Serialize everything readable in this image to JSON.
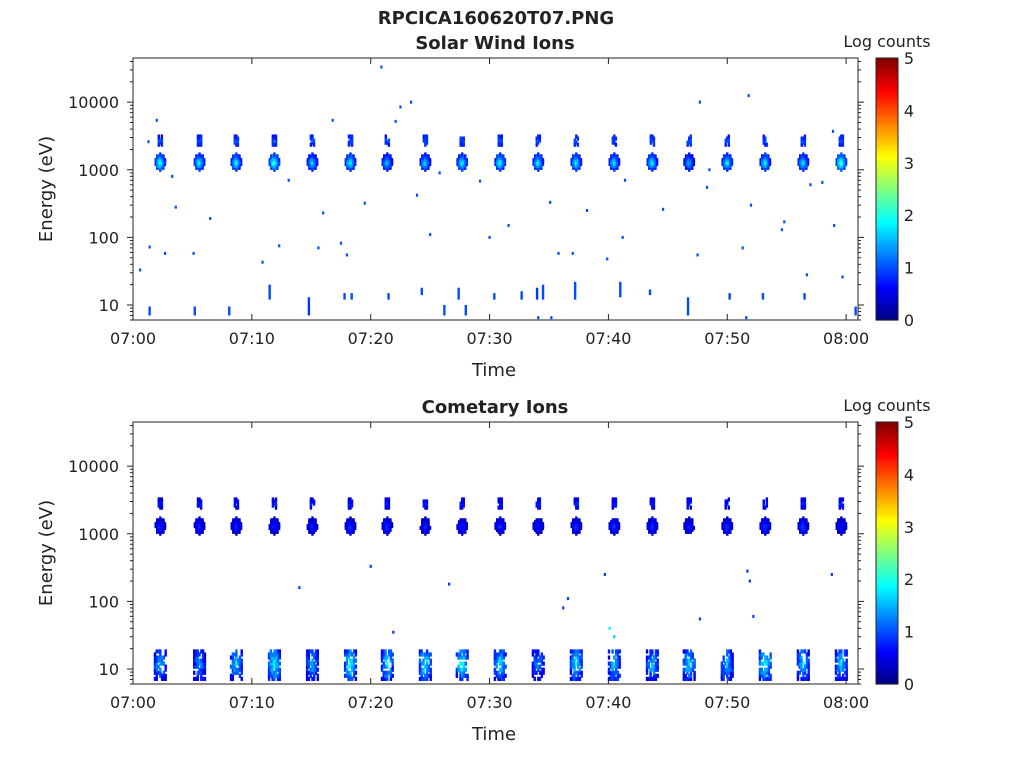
{
  "figure": {
    "title": "RPCICA160620T07.PNG"
  },
  "chart_data": [
    {
      "type": "heatmap",
      "title": "Solar Wind Ions",
      "xlabel": "Time",
      "ylabel": "Energy (eV)",
      "x_ticks": [
        "07:00",
        "07:10",
        "07:20",
        "07:30",
        "07:40",
        "07:50",
        "08:00"
      ],
      "x_range_minutes": [
        0,
        61
      ],
      "y_scale": "log",
      "y_ticks": [
        "10",
        "100",
        "1000",
        "10000"
      ],
      "ylim": [
        6,
        45000
      ],
      "colorbar": {
        "label": "Log counts",
        "range": [
          0,
          5
        ],
        "ticks": [
          "0",
          "1",
          "2",
          "3",
          "4",
          "5"
        ],
        "colormap": "jet"
      },
      "scan_minutes": [
        2.3,
        5.6,
        8.7,
        11.9,
        15.1,
        18.3,
        21.4,
        24.6,
        27.7,
        30.9,
        34.1,
        37.3,
        40.5,
        43.7,
        46.8,
        50.0,
        53.2,
        56.4,
        59.6
      ],
      "main_peak_eV": 1300,
      "secondary_peak_eV": 2700,
      "main_peak_log_counts": [
        2.2,
        2.0,
        2.0,
        2.3,
        1.8,
        2.0,
        1.7,
        1.8,
        2.0,
        2.1,
        2.0,
        2.0,
        1.9,
        2.0,
        1.6,
        2.0,
        2.0,
        1.9,
        2.4
      ],
      "low_energy_streaks": [
        {
          "t": 1.4,
          "e_lo": 7,
          "e_hi": 9.5,
          "v": 1.0
        },
        {
          "t": 5.2,
          "e_lo": 7,
          "e_hi": 9.5,
          "v": 1.0
        },
        {
          "t": 8.1,
          "e_lo": 7,
          "e_hi": 9.5,
          "v": 1.0
        },
        {
          "t": 11.5,
          "e_lo": 12,
          "e_hi": 20,
          "v": 1.0
        },
        {
          "t": 14.8,
          "e_lo": 7,
          "e_hi": 13,
          "v": 0.9
        },
        {
          "t": 17.8,
          "e_lo": 12,
          "e_hi": 15,
          "v": 1.0
        },
        {
          "t": 18.4,
          "e_lo": 12,
          "e_hi": 15,
          "v": 1.0
        },
        {
          "t": 21.5,
          "e_lo": 12,
          "e_hi": 15,
          "v": 1.0
        },
        {
          "t": 24.3,
          "e_lo": 14,
          "e_hi": 18,
          "v": 1.0
        },
        {
          "t": 26.2,
          "e_lo": 7,
          "e_hi": 10,
          "v": 1.0
        },
        {
          "t": 27.4,
          "e_lo": 12,
          "e_hi": 18,
          "v": 1.0
        },
        {
          "t": 28.0,
          "e_lo": 7,
          "e_hi": 10,
          "v": 1.0
        },
        {
          "t": 30.4,
          "e_lo": 12,
          "e_hi": 15,
          "v": 1.0
        },
        {
          "t": 32.7,
          "e_lo": 12,
          "e_hi": 16,
          "v": 1.0
        },
        {
          "t": 34.0,
          "e_lo": 12,
          "e_hi": 18,
          "v": 0.9
        },
        {
          "t": 34.5,
          "e_lo": 12,
          "e_hi": 20,
          "v": 1.0
        },
        {
          "t": 37.2,
          "e_lo": 12,
          "e_hi": 22,
          "v": 1.0
        },
        {
          "t": 41.0,
          "e_lo": 13,
          "e_hi": 22,
          "v": 1.0
        },
        {
          "t": 43.5,
          "e_lo": 14,
          "e_hi": 17,
          "v": 1.0
        },
        {
          "t": 46.7,
          "e_lo": 7,
          "e_hi": 13,
          "v": 1.0
        },
        {
          "t": 50.2,
          "e_lo": 12,
          "e_hi": 15,
          "v": 1.0
        },
        {
          "t": 53.0,
          "e_lo": 12,
          "e_hi": 15,
          "v": 1.0
        },
        {
          "t": 56.5,
          "e_lo": 12,
          "e_hi": 15,
          "v": 1.0
        },
        {
          "t": 60.8,
          "e_lo": 7,
          "e_hi": 9.5,
          "v": 1.0
        }
      ],
      "sparse_points": [
        {
          "t": 20.9,
          "e": 33000,
          "v": 1.0
        },
        {
          "t": 22.1,
          "e": 5200,
          "v": 1.0
        },
        {
          "t": 22.5,
          "e": 8500,
          "v": 1.0
        },
        {
          "t": 23.4,
          "e": 10000,
          "v": 1.0
        },
        {
          "t": 51.8,
          "e": 12500,
          "v": 1.0
        },
        {
          "t": 47.7,
          "e": 10000,
          "v": 1.0
        },
        {
          "t": 1.3,
          "e": 2600,
          "v": 1.0
        },
        {
          "t": 2.0,
          "e": 5400,
          "v": 1.0
        },
        {
          "t": 16.8,
          "e": 5400,
          "v": 1.0
        },
        {
          "t": 3.3,
          "e": 800,
          "v": 1.0
        },
        {
          "t": 3.6,
          "e": 280,
          "v": 1.0
        },
        {
          "t": 6.5,
          "e": 190,
          "v": 1.0
        },
        {
          "t": 13.1,
          "e": 700,
          "v": 1.0
        },
        {
          "t": 16.0,
          "e": 230,
          "v": 1.0
        },
        {
          "t": 19.5,
          "e": 320,
          "v": 1.0
        },
        {
          "t": 23.9,
          "e": 420,
          "v": 1.0
        },
        {
          "t": 25.8,
          "e": 900,
          "v": 1.0
        },
        {
          "t": 29.2,
          "e": 680,
          "v": 1.0
        },
        {
          "t": 31.6,
          "e": 150,
          "v": 1.0
        },
        {
          "t": 35.1,
          "e": 330,
          "v": 1.0
        },
        {
          "t": 38.2,
          "e": 250,
          "v": 1.0
        },
        {
          "t": 41.4,
          "e": 700,
          "v": 1.0
        },
        {
          "t": 44.6,
          "e": 260,
          "v": 1.0
        },
        {
          "t": 48.3,
          "e": 550,
          "v": 1.0
        },
        {
          "t": 52.0,
          "e": 300,
          "v": 1.0
        },
        {
          "t": 54.8,
          "e": 170,
          "v": 1.0
        },
        {
          "t": 57.0,
          "e": 600,
          "v": 1.0
        },
        {
          "t": 59.0,
          "e": 150,
          "v": 1.0
        },
        {
          "t": 0.6,
          "e": 33,
          "v": 1.0
        },
        {
          "t": 1.4,
          "e": 72,
          "v": 1.0
        },
        {
          "t": 2.7,
          "e": 58,
          "v": 1.0
        },
        {
          "t": 5.1,
          "e": 58,
          "v": 1.0
        },
        {
          "t": 10.9,
          "e": 43,
          "v": 1.0
        },
        {
          "t": 12.3,
          "e": 75,
          "v": 1.0
        },
        {
          "t": 15.6,
          "e": 70,
          "v": 1.0
        },
        {
          "t": 17.5,
          "e": 82,
          "v": 1.0
        },
        {
          "t": 18.0,
          "e": 55,
          "v": 1.0
        },
        {
          "t": 25.0,
          "e": 110,
          "v": 1.0
        },
        {
          "t": 30.0,
          "e": 100,
          "v": 1.0
        },
        {
          "t": 35.8,
          "e": 58,
          "v": 1.0
        },
        {
          "t": 37.0,
          "e": 58,
          "v": 1.0
        },
        {
          "t": 39.9,
          "e": 48,
          "v": 1.0
        },
        {
          "t": 41.2,
          "e": 100,
          "v": 1.0
        },
        {
          "t": 47.5,
          "e": 55,
          "v": 1.0
        },
        {
          "t": 51.3,
          "e": 70,
          "v": 1.0
        },
        {
          "t": 54.6,
          "e": 130,
          "v": 1.0
        },
        {
          "t": 56.7,
          "e": 28,
          "v": 1.0
        },
        {
          "t": 59.7,
          "e": 26,
          "v": 1.0
        },
        {
          "t": 34.1,
          "e": 6.5,
          "v": 1.0
        },
        {
          "t": 35.2,
          "e": 6.5,
          "v": 1.0
        },
        {
          "t": 51.6,
          "e": 6.5,
          "v": 1.0
        },
        {
          "t": 58.9,
          "e": 3700,
          "v": 1.0
        },
        {
          "t": 58.0,
          "e": 650,
          "v": 1.0
        },
        {
          "t": 48.5,
          "e": 1000,
          "v": 1.0
        }
      ]
    },
    {
      "type": "heatmap",
      "title": "Cometary Ions",
      "xlabel": "Time",
      "ylabel": "Energy (eV)",
      "x_ticks": [
        "07:00",
        "07:10",
        "07:20",
        "07:30",
        "07:40",
        "07:50",
        "08:00"
      ],
      "x_range_minutes": [
        0,
        61
      ],
      "y_scale": "log",
      "y_ticks": [
        "10",
        "100",
        "1000",
        "10000"
      ],
      "ylim": [
        6,
        45000
      ],
      "colorbar": {
        "label": "Log counts",
        "range": [
          0,
          5
        ],
        "ticks": [
          "0",
          "1",
          "2",
          "3",
          "4",
          "5"
        ],
        "colormap": "jet"
      },
      "scan_minutes": [
        2.3,
        5.6,
        8.7,
        11.9,
        15.1,
        18.3,
        21.4,
        24.6,
        27.7,
        30.9,
        34.1,
        37.3,
        40.5,
        43.7,
        46.8,
        50.0,
        53.2,
        56.4,
        59.6
      ],
      "main_peak_eV": 1300,
      "secondary_peak_eV": 2800,
      "main_peak_log_counts": [
        0.9,
        0.9,
        0.9,
        0.8,
        0.8,
        0.9,
        0.9,
        0.8,
        0.8,
        0.9,
        0.8,
        0.9,
        0.9,
        0.9,
        0.8,
        0.9,
        1.0,
        1.0,
        0.8
      ],
      "low_energy_peak_log_counts": [
        1.6,
        1.4,
        1.7,
        1.9,
        1.5,
        2.0,
        1.8,
        1.9,
        2.0,
        1.8,
        1.4,
        1.9,
        1.7,
        1.6,
        1.8,
        1.6,
        2.0,
        1.7,
        1.7
      ],
      "sparse_points": [
        {
          "t": 14.0,
          "e": 160,
          "v": 0.9
        },
        {
          "t": 20.0,
          "e": 330,
          "v": 0.9
        },
        {
          "t": 26.6,
          "e": 180,
          "v": 0.9
        },
        {
          "t": 36.2,
          "e": 80,
          "v": 0.9
        },
        {
          "t": 36.6,
          "e": 110,
          "v": 0.9
        },
        {
          "t": 39.7,
          "e": 250,
          "v": 0.9
        },
        {
          "t": 51.7,
          "e": 280,
          "v": 0.9
        },
        {
          "t": 51.9,
          "e": 200,
          "v": 0.9
        },
        {
          "t": 52.2,
          "e": 60,
          "v": 0.9
        },
        {
          "t": 58.8,
          "e": 250,
          "v": 0.9
        },
        {
          "t": 47.7,
          "e": 55,
          "v": 0.9
        },
        {
          "t": 21.9,
          "e": 35,
          "v": 0.9
        },
        {
          "t": 40.1,
          "e": 40,
          "v": 1.8
        },
        {
          "t": 40.5,
          "e": 30,
          "v": 1.6
        }
      ]
    }
  ]
}
